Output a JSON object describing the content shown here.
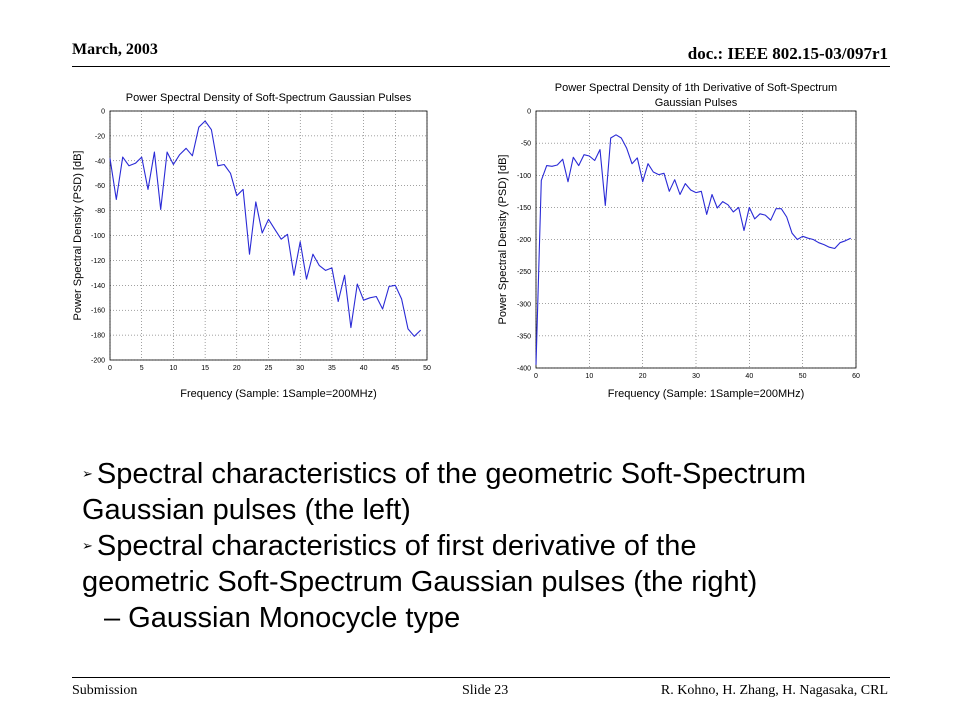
{
  "header": {
    "date": "March, 2003",
    "doc_id": "doc.: IEEE 802.15-03/097r1"
  },
  "footer": {
    "left": "Submission",
    "center": "Slide 23",
    "right": "R. Kohno, H. Zhang, H. Nagasaka, CRL"
  },
  "bullets": [
    {
      "marker": "➢",
      "line1": "Spectral characteristics of the geometric Soft-Spectrum",
      "line2": "Gaussian pulses (the left)"
    },
    {
      "marker": "➢",
      "line1": "Spectral characteristics of first derivative of the",
      "line2": "geometric Soft-Spectrum Gaussian pulses (the right)"
    }
  ],
  "sub_bullet": "– Gaussian Monocycle type",
  "colors": {
    "series": "#2a2ad6",
    "grid": "#444444"
  },
  "chart_data": [
    {
      "type": "line",
      "title": "Power Spectral Density of Soft-Spectrum Gaussian Pulses",
      "xlabel": "Frequency (Sample: 1Sample=200MHz)",
      "ylabel": "Power Spectral Density (PSD) [dB]",
      "xlim": [
        0,
        50
      ],
      "ylim": [
        -200,
        0
      ],
      "xticks": [
        0,
        5,
        10,
        15,
        20,
        25,
        30,
        35,
        40,
        45,
        50
      ],
      "yticks": [
        0,
        -20,
        -40,
        -60,
        -80,
        -100,
        -120,
        -140,
        -160,
        -180,
        -200
      ],
      "grid": true,
      "series": [
        {
          "x": [
            0,
            1,
            2,
            3,
            4,
            5,
            6,
            7,
            8,
            9,
            10,
            11,
            12,
            13,
            14,
            15,
            16,
            17,
            18,
            19,
            20,
            21,
            22,
            23,
            24,
            25,
            26,
            27,
            28,
            29,
            30,
            31,
            32,
            33,
            34,
            35,
            36,
            37,
            38,
            39,
            40,
            41,
            42,
            43,
            44,
            45,
            46,
            47,
            48,
            49
          ],
          "y": [
            -38,
            -71,
            -37,
            -44,
            -42,
            -37,
            -63,
            -33,
            -79,
            -33,
            -43,
            -35,
            -30,
            -36,
            -13,
            -8,
            -15,
            -44,
            -43,
            -50,
            -68,
            -63,
            -115,
            -73,
            -98,
            -87,
            -95,
            -103,
            -99,
            -132,
            -105,
            -135,
            -115,
            -124,
            -128,
            -126,
            -153,
            -132,
            -174,
            -139,
            -152,
            -150,
            -149,
            -159,
            -141,
            -140,
            -151,
            -175,
            -181,
            -176
          ]
        }
      ]
    },
    {
      "type": "line",
      "title": "Power Spectral Density of 1th Derivative of Soft-Spectrum Gaussian Pulses",
      "title_lines": [
        "Power Spectral Density of 1th Derivative of Soft-Spectrum",
        "Gaussian Pulses"
      ],
      "xlabel": "Frequency (Sample: 1Sample=200MHz)",
      "ylabel": "Power Spectral Density (PSD) [dB]",
      "xlim": [
        0,
        60
      ],
      "ylim": [
        -400,
        0
      ],
      "xticks": [
        0,
        10,
        20,
        30,
        40,
        50,
        60
      ],
      "yticks": [
        0,
        -50,
        -100,
        -150,
        -200,
        -250,
        -300,
        -350,
        -400
      ],
      "grid": true,
      "series": [
        {
          "x": [
            0,
            1,
            2,
            3,
            4,
            5,
            6,
            7,
            8,
            9,
            10,
            11,
            12,
            13,
            14,
            15,
            16,
            17,
            18,
            19,
            20,
            21,
            22,
            23,
            24,
            25,
            26,
            27,
            28,
            29,
            30,
            31,
            32,
            33,
            34,
            35,
            36,
            37,
            38,
            39,
            40,
            41,
            42,
            43,
            44,
            45,
            46,
            47,
            48,
            49,
            50,
            51,
            52,
            53,
            54,
            55,
            56,
            57,
            58,
            59
          ],
          "y": [
            -395,
            -108,
            -85,
            -86,
            -84,
            -75,
            -110,
            -72,
            -85,
            -68,
            -70,
            -77,
            -60,
            -147,
            -42,
            -37,
            -42,
            -58,
            -82,
            -73,
            -110,
            -82,
            -95,
            -99,
            -97,
            -125,
            -107,
            -130,
            -113,
            -123,
            -127,
            -125,
            -161,
            -130,
            -151,
            -141,
            -146,
            -157,
            -150,
            -186,
            -150,
            -168,
            -160,
            -162,
            -170,
            -152,
            -152,
            -165,
            -190,
            -200,
            -195,
            -198,
            -200,
            -205,
            -208,
            -212,
            -214,
            -205,
            -202,
            -198
          ]
        }
      ]
    }
  ]
}
